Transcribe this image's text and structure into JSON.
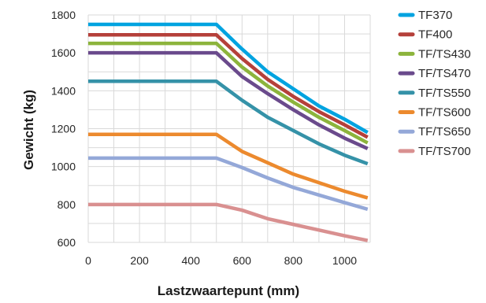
{
  "chart_data": {
    "type": "line",
    "xlabel": "Lastzwaartepunt (mm)",
    "ylabel": "Gewicht (kg)",
    "xlim": [
      0,
      1100
    ],
    "ylim": [
      600,
      1800
    ],
    "xticks": [
      0,
      200,
      400,
      600,
      800,
      1000
    ],
    "yticks": [
      600,
      800,
      1000,
      1200,
      1400,
      1600,
      1800
    ],
    "grid": true,
    "legend": "right",
    "series": [
      {
        "name": "TF370",
        "color": "#00a3e0",
        "x": [
          0,
          500,
          600,
          700,
          800,
          900,
          1000,
          1090
        ],
        "y": [
          1750,
          1750,
          1620,
          1500,
          1410,
          1320,
          1250,
          1180
        ]
      },
      {
        "name": "TF400",
        "color": "#b5403a",
        "x": [
          0,
          500,
          600,
          700,
          800,
          900,
          1000,
          1090
        ],
        "y": [
          1695,
          1695,
          1570,
          1460,
          1370,
          1290,
          1220,
          1155
        ]
      },
      {
        "name": "TF/TS430",
        "color": "#8cb43c",
        "x": [
          0,
          500,
          600,
          700,
          800,
          900,
          1000,
          1090
        ],
        "y": [
          1650,
          1650,
          1525,
          1425,
          1340,
          1260,
          1190,
          1125
        ]
      },
      {
        "name": "TF/TS470",
        "color": "#6a4a8c",
        "x": [
          0,
          500,
          600,
          700,
          800,
          900,
          1000,
          1090
        ],
        "y": [
          1600,
          1600,
          1475,
          1385,
          1300,
          1220,
          1150,
          1095
        ]
      },
      {
        "name": "TF/TS550",
        "color": "#3592a8",
        "x": [
          0,
          500,
          600,
          700,
          800,
          900,
          1000,
          1090
        ],
        "y": [
          1450,
          1450,
          1350,
          1260,
          1190,
          1120,
          1060,
          1015
        ]
      },
      {
        "name": "TF/TS600",
        "color": "#ec8a2e",
        "x": [
          0,
          500,
          600,
          700,
          800,
          900,
          1000,
          1090
        ],
        "y": [
          1170,
          1170,
          1080,
          1020,
          960,
          915,
          870,
          835
        ]
      },
      {
        "name": "TF/TS650",
        "color": "#94a8d8",
        "x": [
          0,
          500,
          600,
          700,
          800,
          900,
          1000,
          1090
        ],
        "y": [
          1045,
          1045,
          995,
          940,
          890,
          850,
          810,
          775
        ]
      },
      {
        "name": "TF/TS700",
        "color": "#d99090",
        "x": [
          0,
          500,
          600,
          700,
          800,
          900,
          1000,
          1090
        ],
        "y": [
          800,
          800,
          770,
          725,
          695,
          665,
          635,
          610
        ]
      }
    ]
  }
}
